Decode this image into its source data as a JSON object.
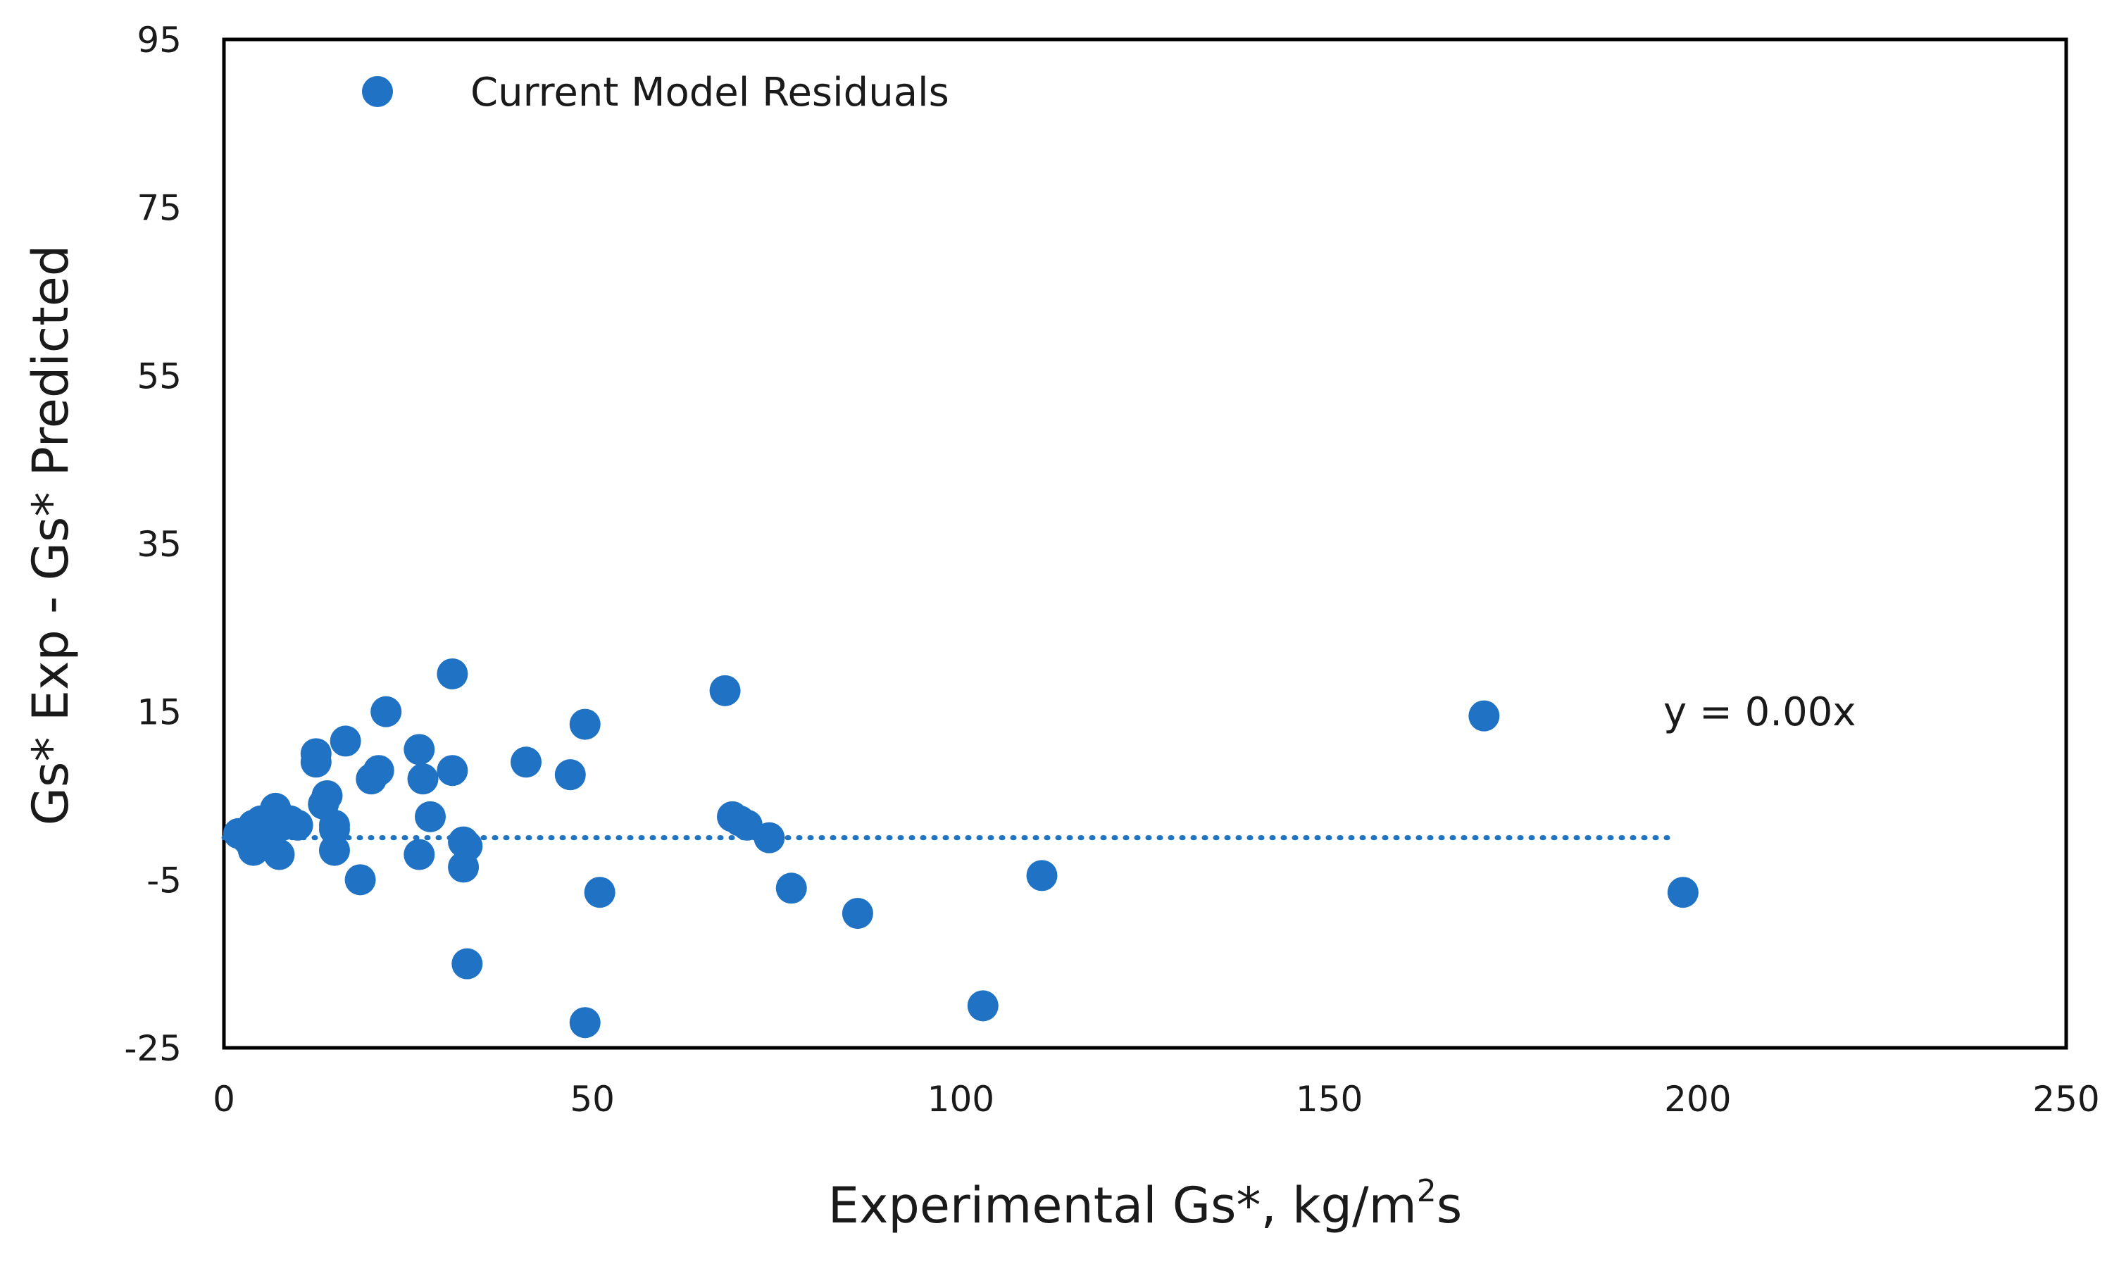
{
  "chart_data": {
    "type": "scatter",
    "title": "",
    "xlabel": "Experimental Gs*, kg/m",
    "xlabel_sup": "2",
    "xlabel_tail": "s",
    "ylabel": "Gs* Exp - Gs* Predicted",
    "xlim": [
      0,
      250
    ],
    "ylim": [
      -25,
      95
    ],
    "x_ticks": [
      0,
      50,
      100,
      150,
      200,
      250
    ],
    "y_ticks": [
      95,
      75,
      55,
      35,
      15,
      -5,
      -25
    ],
    "x_tick_labels": [
      "0",
      "50",
      "100",
      "150",
      "200",
      "250"
    ],
    "y_tick_labels": [
      "95",
      "75",
      "55",
      "35",
      "15",
      "-5",
      "-25"
    ],
    "legend": "Current Model Residuals",
    "legend_position": "top-left",
    "grid": false,
    "marker_color": "#1f72c4",
    "series": [
      {
        "name": "Current Model Residuals",
        "points": [
          [
            2,
            0.5
          ],
          [
            3,
            0
          ],
          [
            3.5,
            -0.5
          ],
          [
            4,
            1.5
          ],
          [
            4,
            -1.5
          ],
          [
            5,
            2
          ],
          [
            5.5,
            1
          ],
          [
            6,
            -1
          ],
          [
            6.5,
            2.5
          ],
          [
            7,
            3.5
          ],
          [
            7.5,
            -2
          ],
          [
            8,
            1.5
          ],
          [
            9,
            2
          ],
          [
            10,
            1.5
          ],
          [
            12.5,
            9
          ],
          [
            12.5,
            10
          ],
          [
            13.5,
            4
          ],
          [
            14,
            5
          ],
          [
            15,
            1.5
          ],
          [
            15,
            1
          ],
          [
            15,
            -1.5
          ],
          [
            16.5,
            11.5
          ],
          [
            18.5,
            -5
          ],
          [
            20,
            7
          ],
          [
            21,
            8
          ],
          [
            22,
            15
          ],
          [
            26.5,
            10.5
          ],
          [
            27,
            7
          ],
          [
            26.5,
            -2
          ],
          [
            28,
            2.5
          ],
          [
            31,
            8
          ],
          [
            31,
            19.5
          ],
          [
            32.5,
            -0.5
          ],
          [
            32.5,
            -3.5
          ],
          [
            33,
            -1
          ],
          [
            33,
            -15
          ],
          [
            41,
            9
          ],
          [
            47,
            7.5
          ],
          [
            49,
            13.5
          ],
          [
            49,
            -22
          ],
          [
            51,
            -6.5
          ],
          [
            68,
            17.5
          ],
          [
            69,
            2.5
          ],
          [
            70,
            2
          ],
          [
            71,
            1.5
          ],
          [
            74,
            0
          ],
          [
            77,
            -6
          ],
          [
            86,
            -9
          ],
          [
            103,
            -20
          ],
          [
            111,
            -4.5
          ],
          [
            171,
            14.5
          ],
          [
            198,
            -6.5
          ]
        ]
      }
    ],
    "trendline": {
      "label": "y = 0.00x",
      "x_range": [
        0,
        196
      ],
      "y_value": 0,
      "style": "dotted"
    }
  }
}
